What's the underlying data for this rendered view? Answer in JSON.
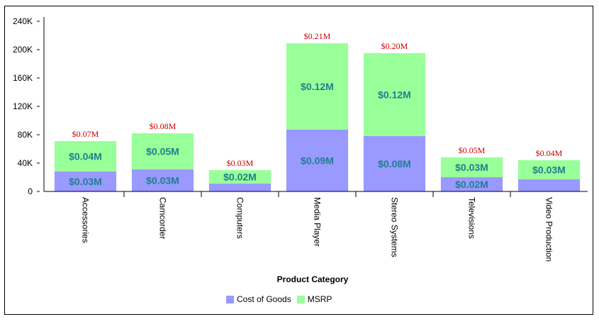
{
  "chart_data": {
    "type": "bar",
    "stacked": true,
    "categories": [
      "Accessories",
      "Camcorder",
      "Computers",
      "Media Player",
      "Stereo Systems",
      "Televisions",
      "Video Production"
    ],
    "series": [
      {
        "name": "Cost of Goods",
        "color": "#9999ff",
        "values": [
          28000,
          31000,
          11000,
          87000,
          78000,
          20000,
          17000
        ],
        "labels": [
          "$0.03M",
          "$0.03M",
          "",
          "$0.09M",
          "$0.08M",
          "$0.02M",
          ""
        ]
      },
      {
        "name": "MSRP",
        "color": "#99ff99",
        "values": [
          43000,
          51000,
          19000,
          122000,
          117000,
          28000,
          27000
        ],
        "labels": [
          "$0.04M",
          "$0.05M",
          "$0.02M",
          "$0.12M",
          "$0.12M",
          "$0.03M",
          "$0.03M"
        ]
      }
    ],
    "totals_labels": [
      "$0.07M",
      "$0.08M",
      "$0.03M",
      "$0.21M",
      "$0.20M",
      "$0.05M",
      "$0.04M"
    ],
    "xlabel": "Product Category",
    "ylabel": "",
    "ylim": [
      0,
      240000
    ],
    "yticks": [
      0,
      40000,
      80000,
      120000,
      160000,
      200000,
      240000
    ],
    "ytick_labels": [
      "0",
      "40K",
      "80K",
      "120K",
      "160K",
      "200K",
      "240K"
    ],
    "grid": false,
    "legend_position": "bottom"
  }
}
